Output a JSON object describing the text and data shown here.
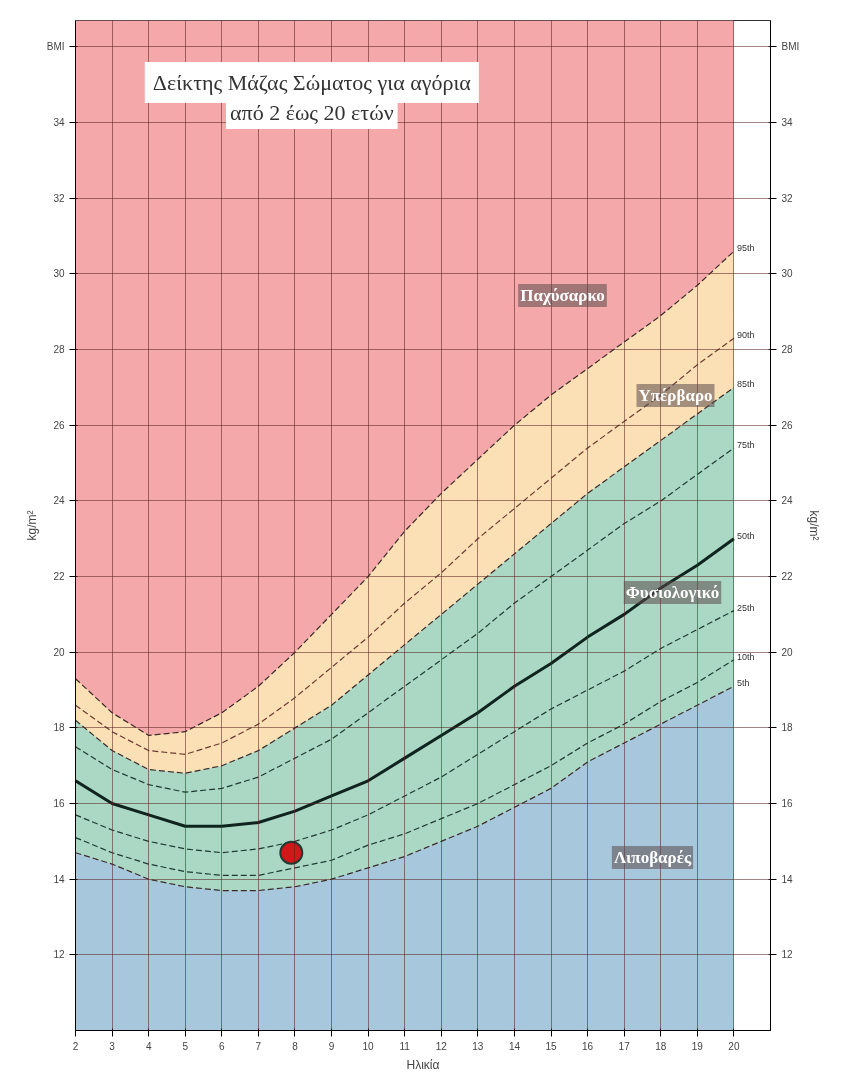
{
  "chart_data": {
    "type": "line",
    "title": "Δείκτης Μάζας Σώματος για αγόρια",
    "subtitle": "από 2 έως 20 ετών",
    "xlabel": "Ηλικία",
    "ylabel": "kg/m²",
    "y2label": "kg/m²",
    "x": [
      2,
      3,
      4,
      5,
      6,
      7,
      8,
      9,
      10,
      11,
      12,
      13,
      14,
      15,
      16,
      17,
      18,
      19,
      20
    ],
    "xlim": [
      2,
      21
    ],
    "xticks": [
      2,
      3,
      4,
      5,
      6,
      7,
      8,
      9,
      10,
      11,
      12,
      13,
      14,
      15,
      16,
      17,
      18,
      19,
      20
    ],
    "ylim": [
      10,
      36.7
    ],
    "yticks": [
      12,
      14,
      16,
      18,
      20,
      22,
      24,
      26,
      28,
      30,
      32,
      34,
      {
        "value": 36,
        "label": "BMI"
      }
    ],
    "y2lim": [
      10,
      36.7
    ],
    "y2ticks": [
      12,
      14,
      16,
      18,
      20,
      22,
      24,
      26,
      28,
      30,
      32,
      34,
      {
        "value": 36,
        "label": "BMI"
      }
    ],
    "grid": true,
    "line_style": "dashed",
    "bands": [
      {
        "axis": "y",
        "from": 10,
        "to": 36.7,
        "color": "#f4a8a9"
      }
    ],
    "series": [
      {
        "name": "95th",
        "type": "area",
        "color": "#fbe0b5",
        "values": [
          19.3,
          18.4,
          17.8,
          17.9,
          18.4,
          19.1,
          20.0,
          21.0,
          22.0,
          23.2,
          24.2,
          25.1,
          26.0,
          26.8,
          27.5,
          28.2,
          28.9,
          29.7,
          30.6
        ]
      },
      {
        "name": "85th",
        "type": "area",
        "color": "#aad8c5",
        "values": [
          18.2,
          17.4,
          16.9,
          16.8,
          17.0,
          17.4,
          18.0,
          18.6,
          19.4,
          20.2,
          21.0,
          21.8,
          22.6,
          23.4,
          24.2,
          24.9,
          25.6,
          26.3,
          27.0
        ]
      },
      {
        "name": "5th",
        "type": "area",
        "color": "#a7c8dc",
        "values": [
          14.7,
          14.4,
          14.0,
          13.8,
          13.7,
          13.7,
          13.8,
          14.0,
          14.3,
          14.6,
          15.0,
          15.4,
          15.9,
          16.4,
          17.1,
          17.6,
          18.1,
          18.6,
          19.1
        ]
      },
      {
        "name": "90th",
        "color": "#6b3b32",
        "values": [
          18.6,
          17.9,
          17.4,
          17.3,
          17.6,
          18.1,
          18.8,
          19.6,
          20.4,
          21.3,
          22.1,
          23.0,
          23.8,
          24.6,
          25.4,
          26.1,
          26.8,
          27.6,
          28.3
        ]
      },
      {
        "name": "75th",
        "color": "#1f3a33",
        "values": [
          17.5,
          16.9,
          16.5,
          16.3,
          16.4,
          16.7,
          17.2,
          17.7,
          18.4,
          19.1,
          19.8,
          20.5,
          21.3,
          22.0,
          22.7,
          23.4,
          24.0,
          24.7,
          25.4
        ]
      },
      {
        "name": "50th",
        "color": "#10241f",
        "line_style": "solid",
        "values": [
          16.6,
          16.0,
          15.7,
          15.4,
          15.4,
          15.5,
          15.8,
          16.2,
          16.6,
          17.2,
          17.8,
          18.4,
          19.1,
          19.7,
          20.4,
          21.0,
          21.7,
          22.3,
          23.0
        ]
      },
      {
        "name": "25th",
        "color": "#1f3a33",
        "values": [
          15.7,
          15.3,
          15.0,
          14.8,
          14.7,
          14.8,
          15.0,
          15.3,
          15.7,
          16.2,
          16.7,
          17.3,
          17.9,
          18.5,
          19.0,
          19.5,
          20.1,
          20.6,
          21.1
        ]
      },
      {
        "name": "10th",
        "color": "#1f3a33",
        "values": [
          15.1,
          14.7,
          14.4,
          14.2,
          14.1,
          14.1,
          14.3,
          14.5,
          14.9,
          15.2,
          15.6,
          16.0,
          16.5,
          17.0,
          17.6,
          18.1,
          18.7,
          19.2,
          19.8
        ]
      },
      {
        "type": "scatter",
        "marker": "circle",
        "color": "#d01818",
        "x": [
          7.9
        ],
        "values": [
          14.7
        ]
      }
    ],
    "annotations": [
      "Παχύσαρκο",
      "Υπέρβαρο",
      "Φυσιολογικό",
      "Λιποβαρές"
    ]
  }
}
